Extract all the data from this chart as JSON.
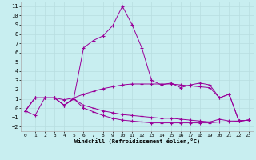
{
  "background_color": "#c8eef0",
  "grid_color": "#b8dde0",
  "line_color": "#990099",
  "marker": "+",
  "xlim": [
    -0.5,
    23.5
  ],
  "ylim": [
    -2.5,
    11.5
  ],
  "xlabel": "Windchill (Refroidissement éolien,°C)",
  "xticks": [
    0,
    1,
    2,
    3,
    4,
    5,
    6,
    7,
    8,
    9,
    10,
    11,
    12,
    13,
    14,
    15,
    16,
    17,
    18,
    19,
    20,
    21,
    22,
    23
  ],
  "yticks": [
    -2,
    -1,
    0,
    1,
    2,
    3,
    4,
    5,
    6,
    7,
    8,
    9,
    10,
    11
  ],
  "lines": [
    [
      0,
      1,
      2,
      3,
      4,
      5,
      6,
      7,
      8,
      9,
      10,
      11,
      12,
      13,
      14,
      15,
      16,
      17,
      18,
      19,
      20,
      21,
      22,
      23
    ],
    [
      -0.3,
      -0.8,
      1.1,
      1.1,
      0.3,
      1.1,
      6.5,
      7.3,
      7.8,
      8.9,
      11.0,
      9.0,
      6.5,
      3.0,
      2.5,
      2.7,
      2.2,
      2.5,
      2.7,
      2.5,
      1.1,
      1.5,
      -1.4,
      -1.3
    ],
    [
      -0.3,
      1.1,
      1.1,
      1.1,
      0.9,
      1.1,
      1.5,
      1.8,
      2.1,
      2.3,
      2.5,
      2.6,
      2.6,
      2.6,
      2.6,
      2.6,
      2.5,
      2.4,
      2.3,
      2.2,
      1.1,
      1.5,
      -1.4,
      -1.3
    ],
    [
      -0.3,
      1.1,
      1.1,
      1.1,
      0.3,
      1.0,
      0.3,
      0.0,
      -0.3,
      -0.5,
      -0.7,
      -0.8,
      -0.9,
      -1.0,
      -1.1,
      -1.1,
      -1.2,
      -1.3,
      -1.4,
      -1.5,
      -1.2,
      -1.4,
      -1.4,
      -1.3
    ],
    [
      -0.3,
      1.1,
      1.1,
      1.1,
      0.3,
      1.0,
      0.0,
      -0.4,
      -0.8,
      -1.1,
      -1.3,
      -1.4,
      -1.5,
      -1.6,
      -1.6,
      -1.6,
      -1.6,
      -1.6,
      -1.6,
      -1.6,
      -1.5,
      -1.5,
      -1.4,
      -1.3
    ]
  ]
}
